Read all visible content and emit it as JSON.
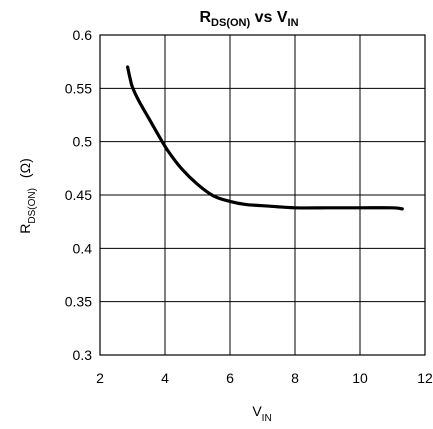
{
  "chart_data": {
    "type": "line",
    "title": {
      "main_a": "R",
      "main_a_sub": "DS(ON)",
      "mid": " vs V",
      "main_b_sub": "IN"
    },
    "xlabel": {
      "base": "V",
      "sub": "IN"
    },
    "ylabel": {
      "base": "R",
      "sub": "DS(ON)",
      "unit": "(Ω)"
    },
    "xlim": [
      2,
      12
    ],
    "ylim": [
      0.3,
      0.6
    ],
    "x_ticks": [
      "2",
      "4",
      "6",
      "8",
      "10",
      "12"
    ],
    "y_ticks": [
      "0.3",
      "0.35",
      "0.4",
      "0.45",
      "0.5",
      "0.55",
      "0.6"
    ],
    "grid": true,
    "series": [
      {
        "x": [
          2.85,
          2.92,
          3.0,
          3.2,
          3.5,
          3.8,
          4.1,
          4.5,
          5.0,
          5.5,
          6.0,
          6.5,
          7.0,
          8.0,
          9.0,
          10.0,
          11.0,
          11.3
        ],
        "y": [
          0.57,
          0.56,
          0.551,
          0.538,
          0.522,
          0.506,
          0.491,
          0.475,
          0.46,
          0.449,
          0.444,
          0.441,
          0.44,
          0.438,
          0.438,
          0.438,
          0.438,
          0.437
        ]
      }
    ]
  }
}
